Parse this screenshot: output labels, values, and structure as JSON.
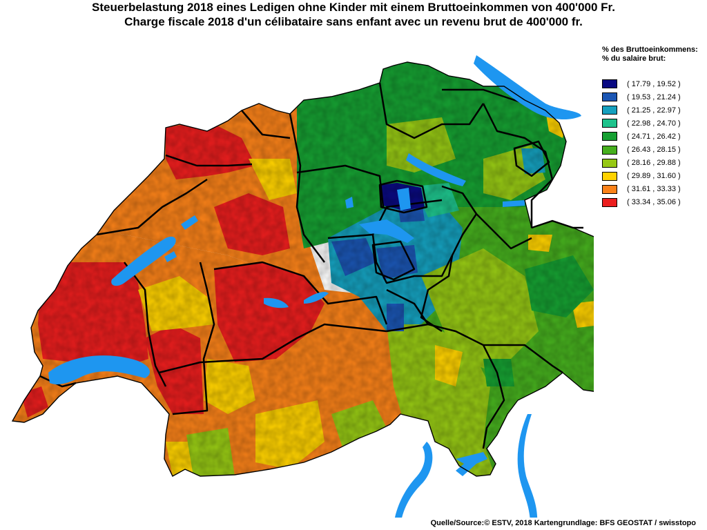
{
  "title": {
    "de": "Steuerbelastung 2018 eines Ledigen ohne Kinder mit einem Bruttoeinkommen von 400'000 Fr.",
    "fr": "Charge fiscale 2018 d'un célibataire sans enfant avec un revenu brut de 400'000 fr."
  },
  "legend": {
    "heading_de": "% des Bruttoeinkommens:",
    "heading_fr": "% du salaire brut:",
    "classes": [
      {
        "label": "( 17.79 , 19.52 )",
        "color": "#0a0a82"
      },
      {
        "label": "( 19.53 , 21.24 )",
        "color": "#1b56b4"
      },
      {
        "label": "( 21.25 , 22.97 )",
        "color": "#15a0be"
      },
      {
        "label": "( 22.98 , 24.70 )",
        "color": "#1ec38c"
      },
      {
        "label": "( 24.71 , 26.42 )",
        "color": "#16a032"
      },
      {
        "label": "( 26.43 , 28.15 )",
        "color": "#46af1e"
      },
      {
        "label": "( 28.16 , 29.88 )",
        "color": "#96c814"
      },
      {
        "label": "( 29.89 , 31.60 )",
        "color": "#ffd200"
      },
      {
        "label": "( 31.61 , 33.33 )",
        "color": "#fa8219"
      },
      {
        "label": "( 33.34 , 35.06 )",
        "color": "#eb1e1e"
      }
    ]
  },
  "source": "Quelle/Source:© ESTV, 2018 Kartengrundlage: BFS GEOSTAT / swisstopo",
  "colors": {
    "lake": "#1e96f0",
    "border": "#000000"
  }
}
